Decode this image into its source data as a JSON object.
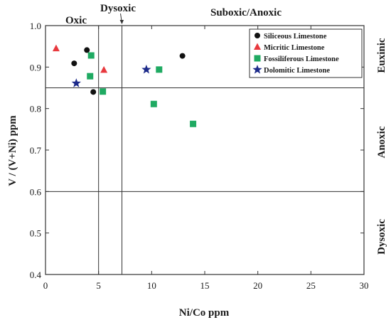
{
  "chart_data": {
    "type": "scatter",
    "xlabel": "Ni/Co ppm",
    "ylabel": "V / (V+Ni) ppm",
    "xlim": [
      0,
      30
    ],
    "ylim": [
      0.4,
      1.0
    ],
    "xticks": [
      0,
      5,
      10,
      15,
      20,
      25,
      30
    ],
    "yticks": [
      0.4,
      0.5,
      0.6,
      0.7,
      0.8,
      0.9,
      1.0
    ],
    "ytick_labels": [
      "0.4",
      "0.5",
      "0.6",
      "0.7",
      "0.8",
      "0.9",
      "1.0"
    ],
    "grid": false,
    "legend_position": "top-right",
    "vertical_lines": [
      5,
      7.2
    ],
    "horizontal_lines": [
      0.85,
      0.6
    ],
    "region_labels_top": [
      "Oxic",
      "Dysoxic",
      "Suboxic/Anoxic"
    ],
    "region_labels_right": [
      "Euxinic",
      "Anoxic",
      "Dysoxic"
    ],
    "series": [
      {
        "name": "Siliceous Limestone",
        "marker": "circle",
        "color": "#111111",
        "points": [
          {
            "x": 2.7,
            "y": 0.909
          },
          {
            "x": 3.9,
            "y": 0.941
          },
          {
            "x": 4.5,
            "y": 0.84
          },
          {
            "x": 12.9,
            "y": 0.927
          }
        ]
      },
      {
        "name": "Micritic Limestone",
        "marker": "triangle",
        "color": "#e8393e",
        "points": [
          {
            "x": 1.0,
            "y": 0.945
          },
          {
            "x": 5.5,
            "y": 0.893
          }
        ]
      },
      {
        "name": "Fossiliferous Limestone",
        "marker": "square",
        "color": "#1faa62",
        "points": [
          {
            "x": 4.3,
            "y": 0.928
          },
          {
            "x": 4.2,
            "y": 0.878
          },
          {
            "x": 5.4,
            "y": 0.841
          },
          {
            "x": 10.7,
            "y": 0.894
          },
          {
            "x": 10.2,
            "y": 0.811
          },
          {
            "x": 13.9,
            "y": 0.763
          }
        ]
      },
      {
        "name": "Dolomitic Limestone",
        "marker": "star",
        "color": "#1c2a8a",
        "points": [
          {
            "x": 2.9,
            "y": 0.861
          },
          {
            "x": 9.5,
            "y": 0.894
          }
        ]
      }
    ]
  }
}
